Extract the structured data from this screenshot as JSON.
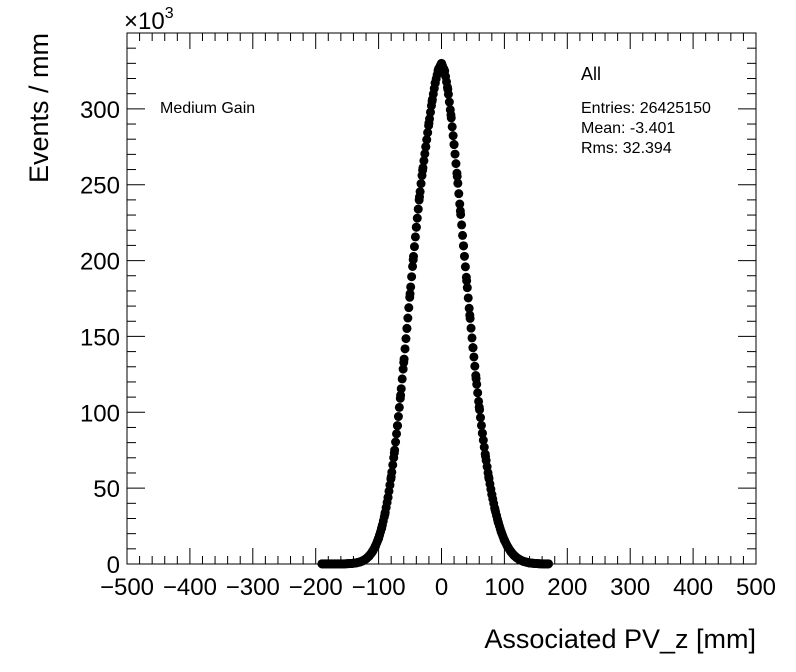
{
  "chart_data": {
    "type": "scatter",
    "xlabel": "Associated PV_z [mm]",
    "ylabel": "Events / mm",
    "y_multiplier": "×10",
    "y_multiplier_exp": "3",
    "xlim": [
      -500,
      500
    ],
    "ylim": [
      0,
      350
    ],
    "x_ticks": [
      -500,
      -400,
      -300,
      -200,
      -100,
      0,
      100,
      200,
      300,
      400,
      500
    ],
    "x_tick_labels": [
      "−500",
      "−400",
      "−300",
      "−200",
      "−100",
      "0",
      "100",
      "200",
      "300",
      "400",
      "500"
    ],
    "y_ticks": [
      0,
      50,
      100,
      150,
      200,
      250,
      300
    ],
    "y_tick_labels": [
      "0",
      "50",
      "100",
      "150",
      "200",
      "250",
      "300"
    ],
    "label": "Medium Gain",
    "stats": {
      "title": "All",
      "entries": "Entries: 26425150",
      "mean": "Mean: -3.401",
      "rms": "Rms: 32.394"
    },
    "series": {
      "x": [
        -190,
        -185,
        -180,
        -175,
        -170,
        -165,
        -160,
        -155,
        -150,
        -145,
        -140,
        -135,
        -130,
        -125,
        -120,
        -115,
        -110,
        -105,
        -100,
        -95,
        -90,
        -85,
        -80,
        -75,
        -70,
        -65,
        -60,
        -55,
        -50,
        -45,
        -40,
        -35,
        -30,
        -25,
        -20,
        -15,
        -10,
        -5,
        0,
        5,
        10,
        15,
        20,
        25,
        30,
        35,
        40,
        45,
        50,
        55,
        60,
        65,
        70,
        75,
        80,
        85,
        90,
        95,
        100,
        105,
        110,
        115,
        120,
        125,
        130,
        135,
        140,
        145,
        150,
        155,
        160,
        165,
        170
      ],
      "y": [
        0.1,
        0.1,
        0.1,
        0.1,
        0.1,
        0.1,
        0.1,
        0.1,
        0.2,
        0.3,
        0.5,
        0.8,
        1.3,
        2.1,
        3.4,
        5.3,
        8.0,
        11.8,
        17.0,
        23.9,
        32.8,
        43.9,
        57.4,
        73.2,
        91.2,
        111.2,
        132.8,
        155.3,
        178.1,
        200.6,
        222.0,
        241.9,
        259.6,
        275.0,
        290.6,
        305.0,
        317.0,
        326.0,
        330.0,
        325.0,
        313.0,
        296.0,
        276.5,
        255.5,
        232.7,
        209.7,
        186.7,
        164.0,
        142.6,
        122.2,
        103.4,
        86.2,
        70.9,
        57.4,
        45.8,
        36.0,
        27.8,
        21.1,
        15.7,
        11.5,
        8.3,
        5.8,
        4.0,
        2.7,
        1.8,
        1.2,
        0.7,
        0.5,
        0.3,
        0.2,
        0.1,
        0.1,
        0.1
      ]
    }
  }
}
